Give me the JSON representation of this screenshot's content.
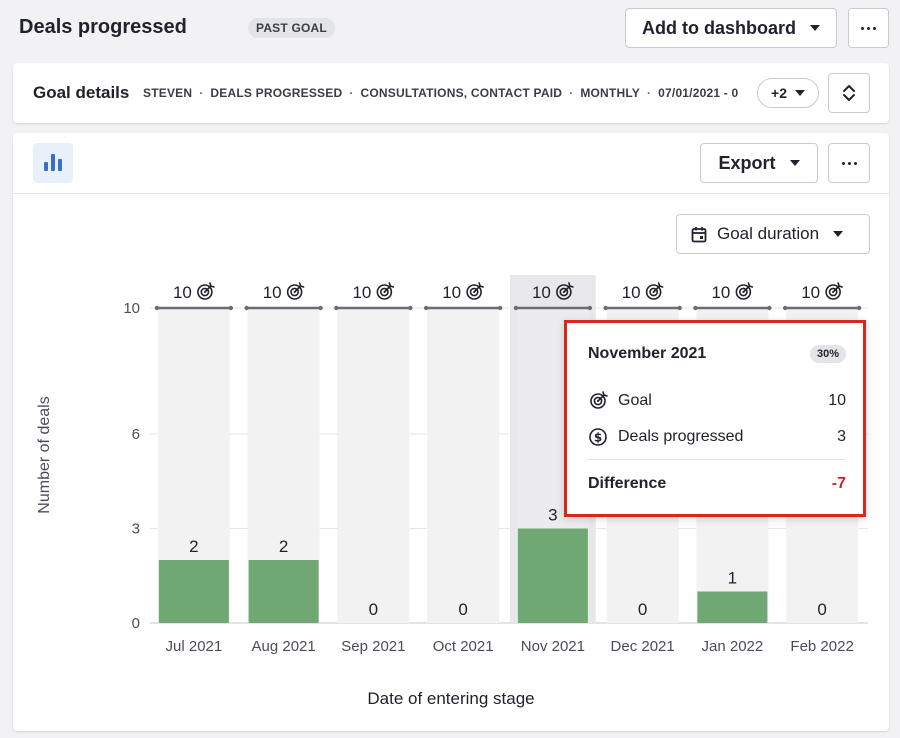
{
  "header": {
    "title": "Deals progressed",
    "badge": "PAST GOAL",
    "add_to_dashboard": "Add to dashboard"
  },
  "details": {
    "title": "Goal details",
    "crumbs": [
      "STEVEN",
      "DEALS PROGRESSED",
      "CONSULTATIONS, CONTACT PAID",
      "MONTHLY",
      "07/01/2021 - 0"
    ],
    "more_pill": "+2"
  },
  "toolbar": {
    "export_label": "Export",
    "duration_label": "Goal duration"
  },
  "colors": {
    "bar": "#6fa873",
    "column_bg": "#f2f2f3",
    "column_bg_hover": "#e8e8ea",
    "goal_line": "#6a6d78",
    "tooltip_border": "#d8281e",
    "negative": "#c62828"
  },
  "chart_data": {
    "type": "bar",
    "categories": [
      "Jul 2021",
      "Aug 2021",
      "Sep 2021",
      "Oct 2021",
      "Nov 2021",
      "Dec 2021",
      "Jan 2022",
      "Feb 2022"
    ],
    "values": [
      2,
      2,
      0,
      0,
      3,
      0,
      1,
      0
    ],
    "goals": [
      10,
      10,
      10,
      10,
      10,
      10,
      10,
      10
    ],
    "xlabel": "Date of entering stage",
    "ylabel": "Number of deals",
    "yticks": [
      0,
      3,
      6,
      10
    ],
    "ylim": [
      0,
      10
    ],
    "highlighted": "Nov 2021"
  },
  "tooltip": {
    "title": "November 2021",
    "percent": "30%",
    "goal_label": "Goal",
    "goal_value": "10",
    "deals_label": "Deals progressed",
    "deals_value": "3",
    "diff_label": "Difference",
    "diff_value": "-7"
  }
}
